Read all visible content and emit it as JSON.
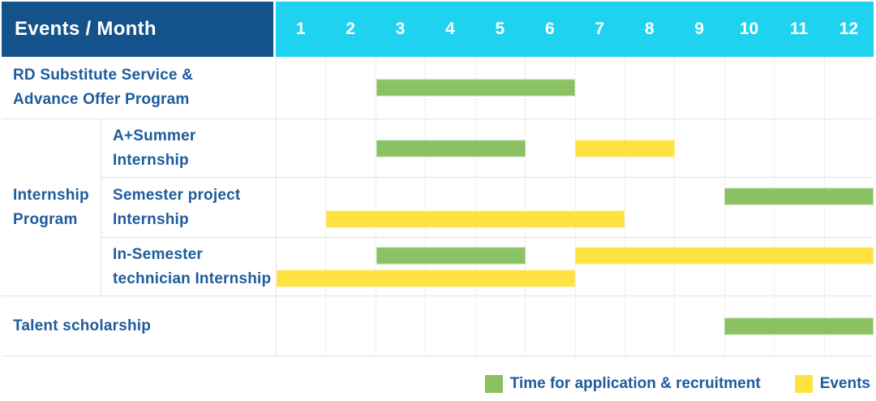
{
  "header": {
    "corner_label": "Events / Month",
    "months": [
      "1",
      "2",
      "3",
      "4",
      "5",
      "6",
      "7",
      "8",
      "9",
      "10",
      "11",
      "12"
    ]
  },
  "group_cell": {
    "label_lines": [
      "Internship",
      "Program"
    ]
  },
  "colors": {
    "header_bg": "#14528B",
    "months_bg": "#1FD2F0",
    "recruitment": "#8AC263",
    "events": "#FEE23F",
    "label_text": "#1E5B9D"
  },
  "legend": {
    "items": [
      {
        "series": "recruitment",
        "label": "Time for application & recruitment"
      },
      {
        "series": "events",
        "label": "Events"
      }
    ]
  },
  "chart_data": {
    "type": "gantt",
    "title": "Events / Month",
    "x_axis": {
      "unit": "month",
      "ticks": [
        1,
        2,
        3,
        4,
        5,
        6,
        7,
        8,
        9,
        10,
        11,
        12
      ]
    },
    "legend": [
      "Time for application & recruitment",
      "Events"
    ],
    "rows": [
      {
        "label": "RD Substitute Service & Advance Offer Program",
        "label_lines": [
          "RD Substitute Service &",
          "Advance Offer Program"
        ],
        "group": null,
        "tracks": [
          [
            {
              "series": "recruitment",
              "start_month": 3,
              "end_month": 6
            }
          ]
        ]
      },
      {
        "label": "A+Summer Internship",
        "label_lines": [
          "A+Summer",
          "Internship"
        ],
        "group": "Internship Program",
        "tracks": [
          [
            {
              "series": "recruitment",
              "start_month": 3,
              "end_month": 5
            },
            {
              "series": "events",
              "start_month": 7,
              "end_month": 8
            }
          ]
        ]
      },
      {
        "label": "Semester project Internship",
        "label_lines": [
          "Semester project",
          "Internship"
        ],
        "group": "Internship Program",
        "tracks": [
          [
            {
              "series": "recruitment",
              "start_month": 10,
              "end_month": 12
            }
          ],
          [
            {
              "series": "events",
              "start_month": 2,
              "end_month": 7
            }
          ]
        ]
      },
      {
        "label": "In-Semester technician Internship",
        "label_lines": [
          "In-Semester",
          "technician Internship"
        ],
        "group": "Internship Program",
        "tracks": [
          [
            {
              "series": "recruitment",
              "start_month": 3,
              "end_month": 5
            },
            {
              "series": "events",
              "start_month": 7,
              "end_month": 12
            }
          ],
          [
            {
              "series": "events",
              "start_month": 1,
              "end_month": 6
            }
          ]
        ]
      },
      {
        "label": "Talent scholarship",
        "label_lines": [
          "Talent scholarship"
        ],
        "group": null,
        "tracks": [
          [
            {
              "series": "recruitment",
              "start_month": 10,
              "end_month": 12
            }
          ]
        ]
      }
    ]
  }
}
